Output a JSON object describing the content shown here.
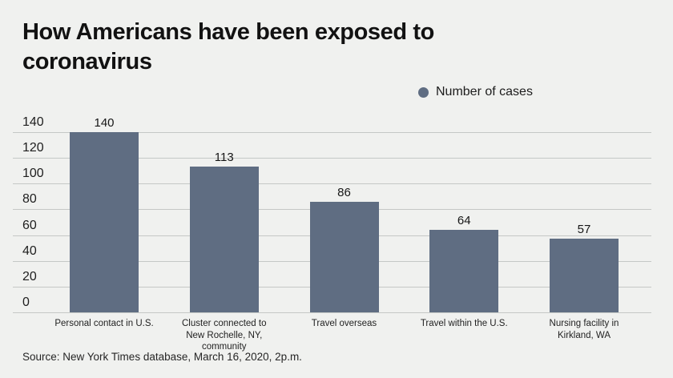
{
  "page": {
    "background_color": "#f0f1ef"
  },
  "header": {
    "title": "How Americans have been exposed to coronavirus"
  },
  "legend": {
    "label": "Number of cases",
    "marker_color": "#5f6d82"
  },
  "chart_data": {
    "type": "bar",
    "title": "How Americans have been exposed to coronavirus",
    "series_name": "Number of cases",
    "categories": [
      "Personal contact in U.S.",
      "Cluster connected to New Rochelle, NY, community",
      "Travel overseas",
      "Travel within the U.S.",
      "Nursing facility in Kirkland, WA"
    ],
    "category_label_lines": [
      [
        "Personal contact in U.S."
      ],
      [
        "Cluster connected to",
        "New Rochelle, NY,",
        "community"
      ],
      [
        "Travel overseas"
      ],
      [
        "Travel within the U.S."
      ],
      [
        "Nursing facility in",
        "Kirkland, WA"
      ]
    ],
    "values": [
      140,
      113,
      86,
      64,
      57
    ],
    "ylim": [
      0,
      140
    ],
    "yticks": [
      0,
      20,
      40,
      60,
      80,
      100,
      120,
      140
    ],
    "grid": true,
    "legend_position": "top-right",
    "bar_color": "#5f6d82",
    "gridline_color": "#c5c8c6",
    "value_labels_shown": true,
    "xlabel": "",
    "ylabel": ""
  },
  "footer": {
    "source_text": "Source: New York Times database, March 16, 2020, 2p.m."
  }
}
